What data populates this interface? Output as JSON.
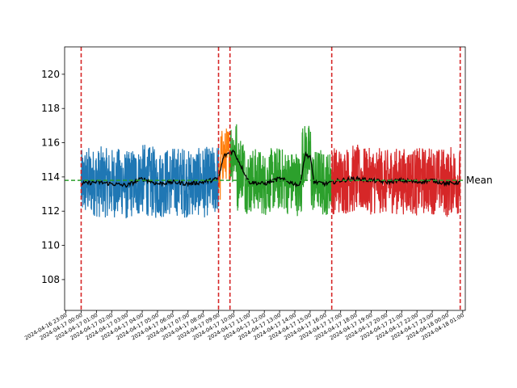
{
  "chart_data": {
    "type": "line",
    "title": "",
    "xlabel": "",
    "ylabel": "",
    "x_range": [
      "2024-04-16 22:55",
      "2024-04-18 01:10"
    ],
    "ylim": [
      106.2,
      121.6
    ],
    "yticks": [
      108,
      110,
      112,
      114,
      116,
      118,
      120
    ],
    "xticks": [
      "2024-04-16 23:00",
      "2024-04-17 00:00",
      "2024-04-17 01:00",
      "2024-04-17 02:00",
      "2024-04-17 03:00",
      "2024-04-17 04:00",
      "2024-04-17 05:00",
      "2024-04-17 06:00",
      "2024-04-17 07:00",
      "2024-04-17 08:00",
      "2024-04-17 09:00",
      "2024-04-17 10:00",
      "2024-04-17 11:00",
      "2024-04-17 12:00",
      "2024-04-17 13:00",
      "2024-04-17 14:00",
      "2024-04-17 15:00",
      "2024-04-17 16:00",
      "2024-04-17 17:00",
      "2024-04-17 18:00",
      "2024-04-17 19:00",
      "2024-04-17 20:00",
      "2024-04-17 21:00",
      "2024-04-17 22:00",
      "2024-04-17 23:00",
      "2024-04-18 00:00",
      "2024-04-18 01:00"
    ],
    "grid": false,
    "series": [
      {
        "start": "2024-04-17 00:00",
        "end": "2024-04-17 09:00",
        "center": 113.7,
        "amplitude": 2.1,
        "color": "#1f77b4"
      },
      {
        "start": "2024-04-17 09:00",
        "end": "2024-04-17 09:45",
        "center": 115.2,
        "amplitude": 1.6,
        "color": "#ff7f0e"
      },
      {
        "start": "2024-04-17 09:45",
        "end": "2024-04-17 16:25",
        "center": 113.8,
        "amplitude": 1.9,
        "color": "#2ca02c"
      },
      {
        "start": "2024-04-17 16:25",
        "end": "2024-04-18 00:50",
        "center": 113.8,
        "amplitude": 2.0,
        "color": "#d62728"
      }
    ],
    "rolling_mean": [
      [
        "2024-04-17 00:00",
        113.6
      ],
      [
        "2024-04-17 01:00",
        113.7
      ],
      [
        "2024-04-17 02:00",
        113.6
      ],
      [
        "2024-04-17 03:00",
        113.5
      ],
      [
        "2024-04-17 04:00",
        113.9
      ],
      [
        "2024-04-17 05:00",
        113.6
      ],
      [
        "2024-04-17 06:00",
        113.7
      ],
      [
        "2024-04-17 07:00",
        113.6
      ],
      [
        "2024-04-17 08:00",
        113.7
      ],
      [
        "2024-04-17 09:00",
        113.9
      ],
      [
        "2024-04-17 09:20",
        115.2
      ],
      [
        "2024-04-17 09:40",
        115.4
      ],
      [
        "2024-04-17 10:00",
        115.5
      ],
      [
        "2024-04-17 10:30",
        114.6
      ],
      [
        "2024-04-17 11:00",
        113.7
      ],
      [
        "2024-04-17 12:00",
        113.6
      ],
      [
        "2024-04-17 13:00",
        113.9
      ],
      [
        "2024-04-17 13:40",
        113.7
      ],
      [
        "2024-04-17 14:20",
        113.5
      ],
      [
        "2024-04-17 14:40",
        115.3
      ],
      [
        "2024-04-17 15:00",
        115.2
      ],
      [
        "2024-04-17 15:15",
        113.7
      ],
      [
        "2024-04-17 16:00",
        113.6
      ],
      [
        "2024-04-17 17:00",
        113.8
      ],
      [
        "2024-04-17 18:00",
        113.9
      ],
      [
        "2024-04-17 19:00",
        113.8
      ],
      [
        "2024-04-17 20:00",
        113.7
      ],
      [
        "2024-04-17 21:00",
        113.8
      ],
      [
        "2024-04-17 22:00",
        113.7
      ],
      [
        "2024-04-17 23:00",
        113.8
      ],
      [
        "2024-04-18 00:00",
        113.6
      ],
      [
        "2024-04-18 00:50",
        113.7
      ]
    ],
    "change_points": [
      "2024-04-17 00:00",
      "2024-04-17 09:00",
      "2024-04-17 09:45",
      "2024-04-17 16:25",
      "2024-04-18 00:50"
    ],
    "mean_line": {
      "value": 113.8,
      "label": "Mean"
    },
    "colors": {
      "change_point": "#d62728",
      "mean": "#2ca02c",
      "rolling": "#000000"
    }
  }
}
